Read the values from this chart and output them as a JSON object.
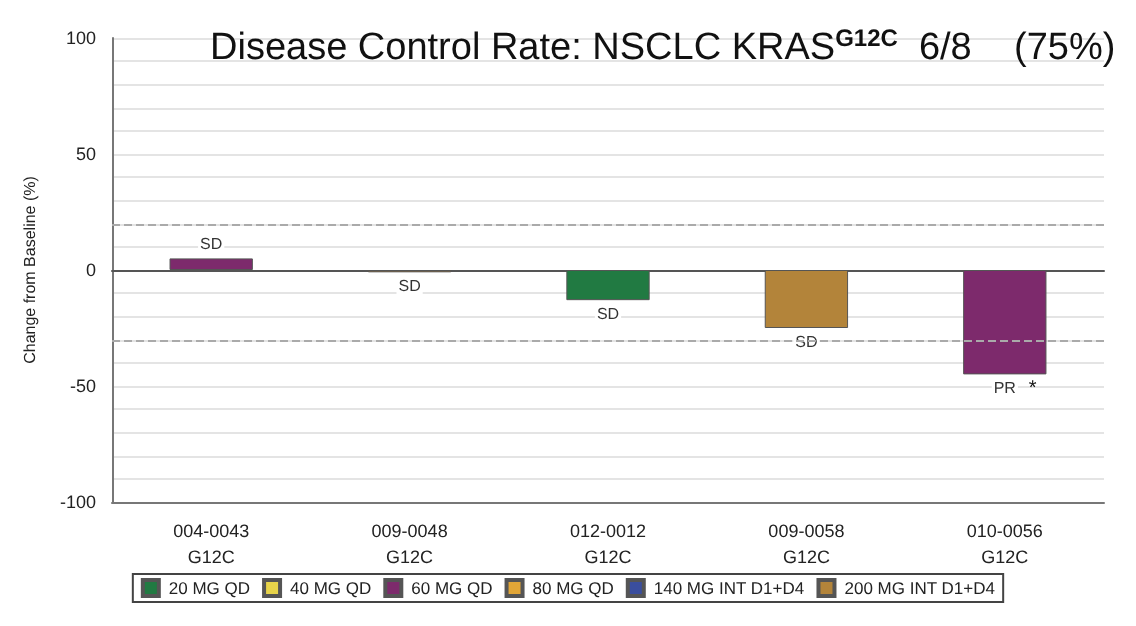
{
  "chart_data": {
    "type": "bar",
    "title": "Disease Control Rate: NSCLC KRAS$^{G12C}$  6/8    (75%)",
    "ylabel": "Change from Baseline (%)",
    "categories": [
      "004-0043\nG12C",
      "009-0048\nG12C",
      "012-0012\nG12C",
      "009-0058\nG12C",
      "010-0056\nG12C"
    ],
    "series": [
      {
        "name": "20 MG QD",
        "color": "#217a42",
        "values": [
          null,
          null,
          -13,
          null,
          null
        ],
        "value_labels": [
          null,
          null,
          "SD",
          null,
          null
        ]
      },
      {
        "name": "40 MG QD",
        "color": "#e8d44a",
        "values": [
          null,
          null,
          null,
          null,
          null
        ]
      },
      {
        "name": "60 MG QD",
        "color": "#7d2a6c",
        "values": [
          5,
          null,
          null,
          null,
          -45
        ],
        "value_labels": [
          "SD",
          null,
          null,
          null,
          "PR"
        ]
      },
      {
        "name": "80 MG QD",
        "color": "#e2a637",
        "values": [
          null,
          null,
          null,
          null,
          null
        ]
      },
      {
        "name": "140 MG INT D1+D4",
        "color": "#3a4e9e",
        "values": [
          null,
          null,
          null,
          null,
          null
        ]
      },
      {
        "name": "200 MG INT D1+D4",
        "color": "#b3843a",
        "values": [
          null,
          -1,
          null,
          -25,
          null
        ],
        "value_labels": [
          null,
          "SD",
          null,
          "SD",
          null
        ]
      }
    ],
    "ylim": [
      -100,
      100
    ],
    "yticks": [
      -100,
      -50,
      0,
      50,
      100
    ],
    "grid": true,
    "legend": "bottom",
    "ref_lines": [
      {
        "axis": "y",
        "value": 20,
        "color": "#aaaaaa",
        "line_style": "dashed"
      },
      {
        "axis": "y",
        "value": -30,
        "color": "#aaaaaa",
        "line_style": "dashed"
      }
    ],
    "annotations": [
      {
        "text": "*",
        "x": "010-0056\nG12C",
        "y": -47
      }
    ]
  }
}
